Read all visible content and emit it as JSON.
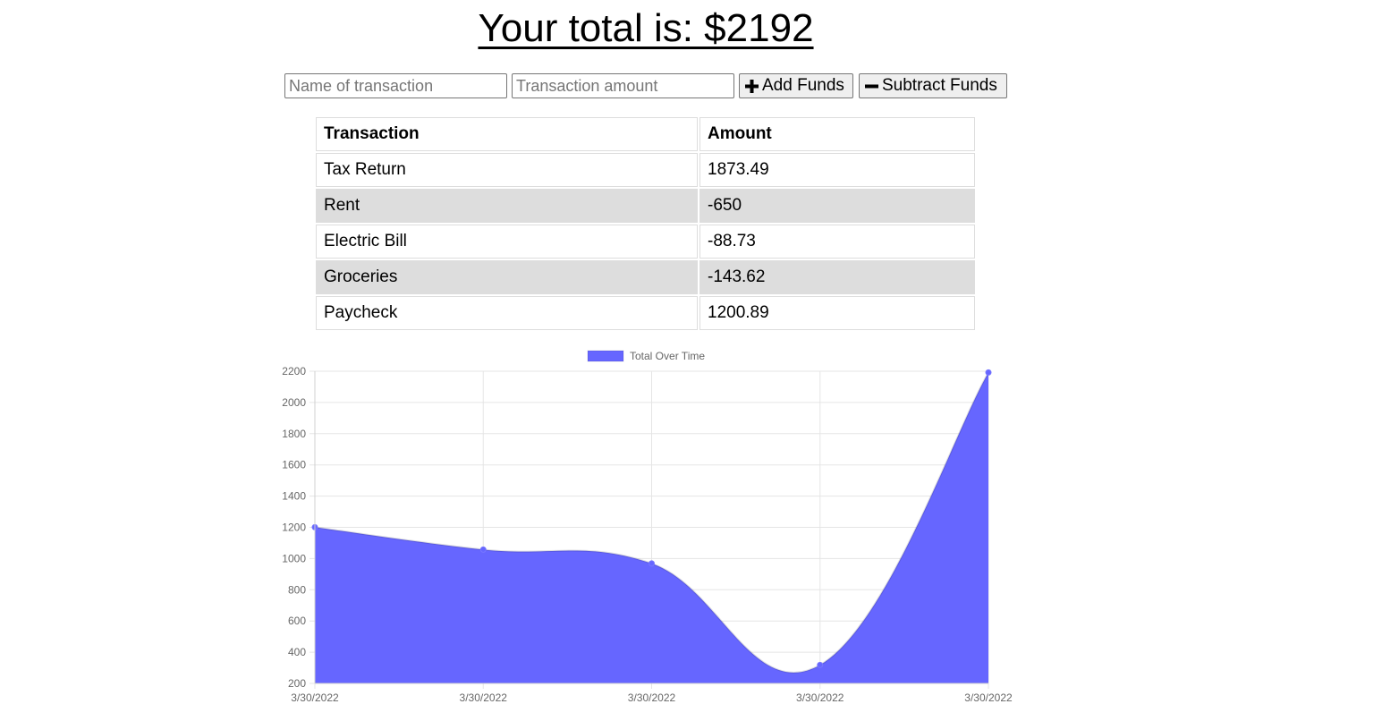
{
  "header": {
    "title": "Your total is: $2192"
  },
  "form": {
    "name_placeholder": "Name of transaction",
    "amount_placeholder": "Transaction amount",
    "add_label": "Add Funds",
    "subtract_label": "Subtract Funds"
  },
  "table": {
    "headers": [
      "Transaction",
      "Amount"
    ],
    "rows": [
      {
        "name": "Tax Return",
        "amount": "1873.49"
      },
      {
        "name": "Rent",
        "amount": "-650"
      },
      {
        "name": "Electric Bill",
        "amount": "-88.73"
      },
      {
        "name": "Groceries",
        "amount": "-143.62"
      },
      {
        "name": "Paycheck",
        "amount": "1200.89"
      }
    ]
  },
  "chart_data": {
    "type": "area",
    "title": "",
    "xlabel": "",
    "ylabel": "",
    "x": [
      "3/30/2022",
      "3/30/2022",
      "3/30/2022",
      "3/30/2022",
      "3/30/2022"
    ],
    "series": [
      {
        "name": "Total Over Time",
        "values": [
          1200.89,
          1057.27,
          968.54,
          318.54,
          2192.03
        ],
        "color": "#6666ff"
      }
    ],
    "ylim": [
      200,
      2200
    ],
    "yticks": [
      200,
      400,
      600,
      800,
      1000,
      1200,
      1400,
      1600,
      1800,
      2000,
      2200
    ],
    "grid": true,
    "legend": "top-center"
  }
}
